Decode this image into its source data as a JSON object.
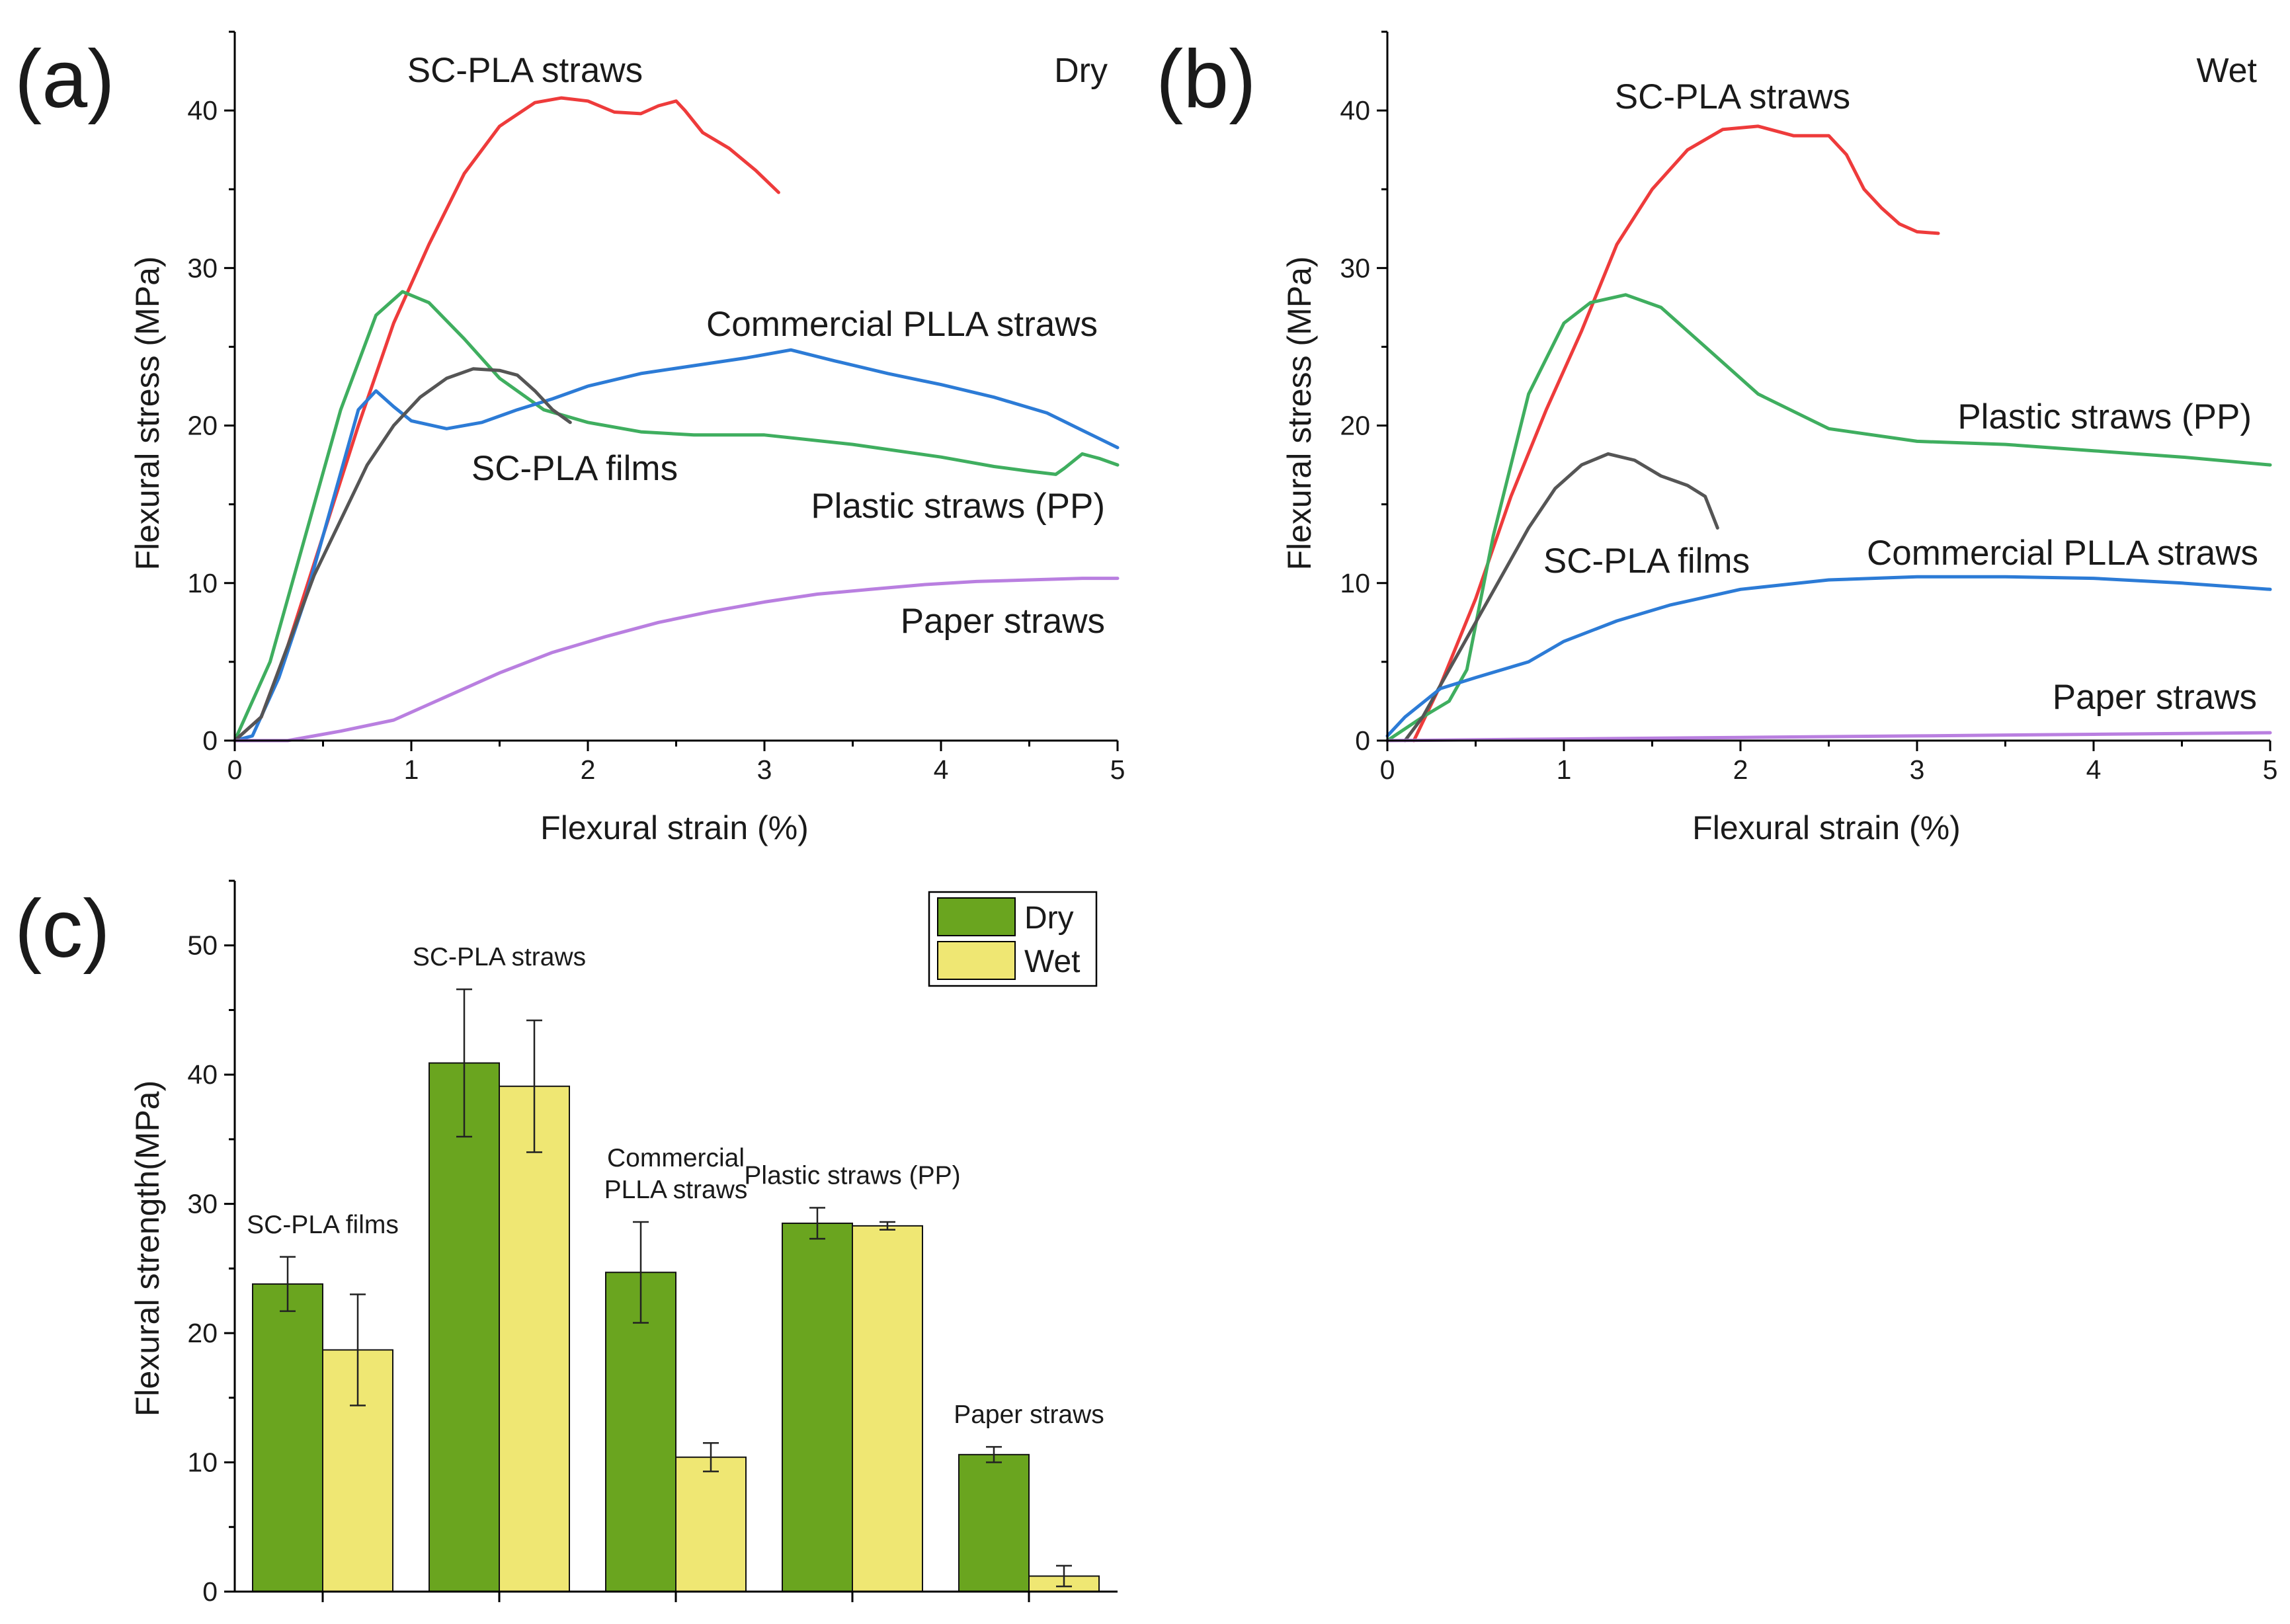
{
  "chart_data": [
    {
      "id": "a",
      "type": "line",
      "panel_label": "(a)",
      "condition_label": "Dry",
      "xlabel": "Flexural strain (%)",
      "ylabel": "Flexural stress (MPa)",
      "xlim": [
        0,
        5
      ],
      "ylim": [
        0,
        45
      ],
      "xticks": [
        0,
        1,
        2,
        3,
        4,
        5
      ],
      "yticks": [
        0,
        10,
        20,
        30,
        40
      ],
      "series": [
        {
          "key": "sc_pla_straws",
          "name": "SC-PLA straws",
          "color": "#ee3b3b",
          "x": [
            0,
            0.15,
            0.3,
            0.5,
            0.7,
            0.9,
            1.1,
            1.3,
            1.5,
            1.7,
            1.85,
            2.0,
            2.15,
            2.3,
            2.4,
            2.5,
            2.55,
            2.65,
            2.8,
            2.95,
            3.08
          ],
          "y": [
            0,
            1.5,
            6,
            13,
            20,
            26.5,
            31.5,
            36,
            39,
            40.5,
            40.8,
            40.6,
            39.9,
            39.8,
            40.3,
            40.6,
            40.0,
            38.6,
            37.6,
            36.2,
            34.8
          ]
        },
        {
          "key": "pp_straws",
          "name": "Plastic straws (PP)",
          "color": "#3fae5f",
          "x": [
            0,
            0.2,
            0.4,
            0.6,
            0.8,
            0.95,
            1.1,
            1.3,
            1.5,
            1.75,
            2.0,
            2.3,
            2.6,
            3.0,
            3.5,
            4.0,
            4.3,
            4.5,
            4.65,
            4.7,
            4.8,
            4.9,
            5.0
          ],
          "y": [
            0,
            5,
            13,
            21,
            27,
            28.5,
            27.8,
            25.5,
            23,
            21,
            20.2,
            19.6,
            19.4,
            19.4,
            18.8,
            18.0,
            17.4,
            17.1,
            16.9,
            17.3,
            18.2,
            17.9,
            17.5
          ]
        },
        {
          "key": "commercial_plla",
          "name": "Commercial PLLA straws",
          "color": "#2c7bd6",
          "x": [
            0,
            0.1,
            0.25,
            0.4,
            0.55,
            0.7,
            0.8,
            0.9,
            1.0,
            1.2,
            1.4,
            1.6,
            1.8,
            2.0,
            2.3,
            2.6,
            2.9,
            3.15,
            3.4,
            3.7,
            4.0,
            4.3,
            4.6,
            4.8,
            5.0
          ],
          "y": [
            0,
            0.3,
            4,
            9,
            15,
            21,
            22.2,
            21.2,
            20.3,
            19.8,
            20.2,
            21,
            21.7,
            22.5,
            23.3,
            23.8,
            24.3,
            24.8,
            24.1,
            23.3,
            22.6,
            21.8,
            20.8,
            19.7,
            18.6
          ]
        },
        {
          "key": "sc_pla_films",
          "name": "SC-PLA films",
          "color": "#555555",
          "x": [
            0,
            0.15,
            0.3,
            0.45,
            0.6,
            0.75,
            0.9,
            1.05,
            1.2,
            1.35,
            1.5,
            1.6,
            1.7,
            1.8,
            1.9
          ],
          "y": [
            0,
            1.5,
            6,
            10.5,
            14,
            17.5,
            20,
            21.8,
            23,
            23.6,
            23.5,
            23.2,
            22.2,
            21,
            20.2
          ]
        },
        {
          "key": "paper_straws",
          "name": "Paper straws",
          "color": "#b97fe0",
          "x": [
            0,
            0.3,
            0.6,
            0.9,
            1.2,
            1.5,
            1.8,
            2.1,
            2.4,
            2.7,
            3.0,
            3.3,
            3.6,
            3.9,
            4.2,
            4.5,
            4.8,
            5.0
          ],
          "y": [
            0,
            0,
            0.6,
            1.3,
            2.8,
            4.3,
            5.6,
            6.6,
            7.5,
            8.2,
            8.8,
            9.3,
            9.6,
            9.9,
            10.1,
            10.2,
            10.3,
            10.3
          ]
        }
      ]
    },
    {
      "id": "b",
      "type": "line",
      "panel_label": "(b)",
      "condition_label": "Wet",
      "xlabel": "Flexural strain (%)",
      "ylabel": "Flexural stress (MPa)",
      "xlim": [
        0,
        5
      ],
      "ylim": [
        0,
        45
      ],
      "xticks": [
        0,
        1,
        2,
        3,
        4,
        5
      ],
      "yticks": [
        0,
        10,
        20,
        30,
        40
      ],
      "series": [
        {
          "key": "sc_pla_straws",
          "name": "SC-PLA straws",
          "color": "#ee3b3b",
          "x": [
            0.15,
            0.3,
            0.5,
            0.7,
            0.9,
            1.1,
            1.3,
            1.5,
            1.7,
            1.9,
            2.1,
            2.3,
            2.5,
            2.6,
            2.7,
            2.8,
            2.9,
            3.0,
            3.12
          ],
          "y": [
            0,
            3.5,
            9,
            15.5,
            21,
            26,
            31.5,
            35,
            37.5,
            38.8,
            39.0,
            38.4,
            38.4,
            37.2,
            35,
            33.8,
            32.8,
            32.3,
            32.2
          ]
        },
        {
          "key": "pp_straws",
          "name": "Plastic straws (PP)",
          "color": "#3fae5f",
          "x": [
            0,
            0.2,
            0.35,
            0.45,
            0.6,
            0.8,
            1.0,
            1.15,
            1.35,
            1.55,
            1.8,
            2.1,
            2.5,
            3.0,
            3.5,
            4.0,
            4.5,
            5.0
          ],
          "y": [
            0,
            1.5,
            2.5,
            4.5,
            13,
            22,
            26.5,
            27.8,
            28.3,
            27.5,
            25,
            22,
            19.8,
            19.0,
            18.8,
            18.4,
            18.0,
            17.5
          ]
        },
        {
          "key": "sc_pla_films",
          "name": "SC-PLA films",
          "color": "#555555",
          "x": [
            0.1,
            0.2,
            0.35,
            0.5,
            0.65,
            0.8,
            0.95,
            1.1,
            1.25,
            1.4,
            1.55,
            1.7,
            1.8,
            1.87
          ],
          "y": [
            0,
            1.5,
            4.5,
            7.5,
            10.5,
            13.5,
            16,
            17.5,
            18.2,
            17.8,
            16.8,
            16.2,
            15.5,
            13.5
          ]
        },
        {
          "key": "commercial_plla",
          "name": "Commercial PLLA straws",
          "color": "#2c7bd6",
          "x": [
            0,
            0.1,
            0.3,
            0.5,
            0.8,
            1.0,
            1.3,
            1.6,
            2.0,
            2.5,
            3.0,
            3.5,
            4.0,
            4.5,
            5.0
          ],
          "y": [
            0.3,
            1.5,
            3.3,
            4.0,
            5.0,
            6.3,
            7.6,
            8.6,
            9.6,
            10.2,
            10.4,
            10.4,
            10.3,
            10.0,
            9.6
          ]
        },
        {
          "key": "paper_straws",
          "name": "Paper straws",
          "color": "#b97fe0",
          "x": [
            0,
            1,
            2,
            3,
            4,
            5
          ],
          "y": [
            0,
            0.1,
            0.2,
            0.3,
            0.4,
            0.5
          ]
        }
      ]
    },
    {
      "id": "c",
      "type": "bar",
      "panel_label": "(c)",
      "ylabel": "Flexural strength(MPa)",
      "ylim": [
        0,
        55
      ],
      "yticks": [
        0,
        10,
        20,
        30,
        40,
        50
      ],
      "categories": [
        [
          "SC-PLA films"
        ],
        [
          "SC-PLA straws"
        ],
        [
          "Commercial",
          "PLLA straws"
        ],
        [
          "Plastic straws (PP)"
        ],
        [
          "Paper straws"
        ]
      ],
      "series": [
        {
          "name": "Dry",
          "color": "#6aa51f",
          "values": [
            23.8,
            40.9,
            24.7,
            28.5,
            10.6
          ],
          "errors": [
            2.1,
            5.7,
            3.9,
            1.2,
            0.6
          ]
        },
        {
          "name": "Wet",
          "color": "#efe773",
          "values": [
            18.7,
            39.1,
            10.4,
            28.3,
            1.2
          ],
          "errors": [
            4.3,
            5.1,
            1.1,
            0.3,
            0.8
          ]
        }
      ]
    }
  ]
}
